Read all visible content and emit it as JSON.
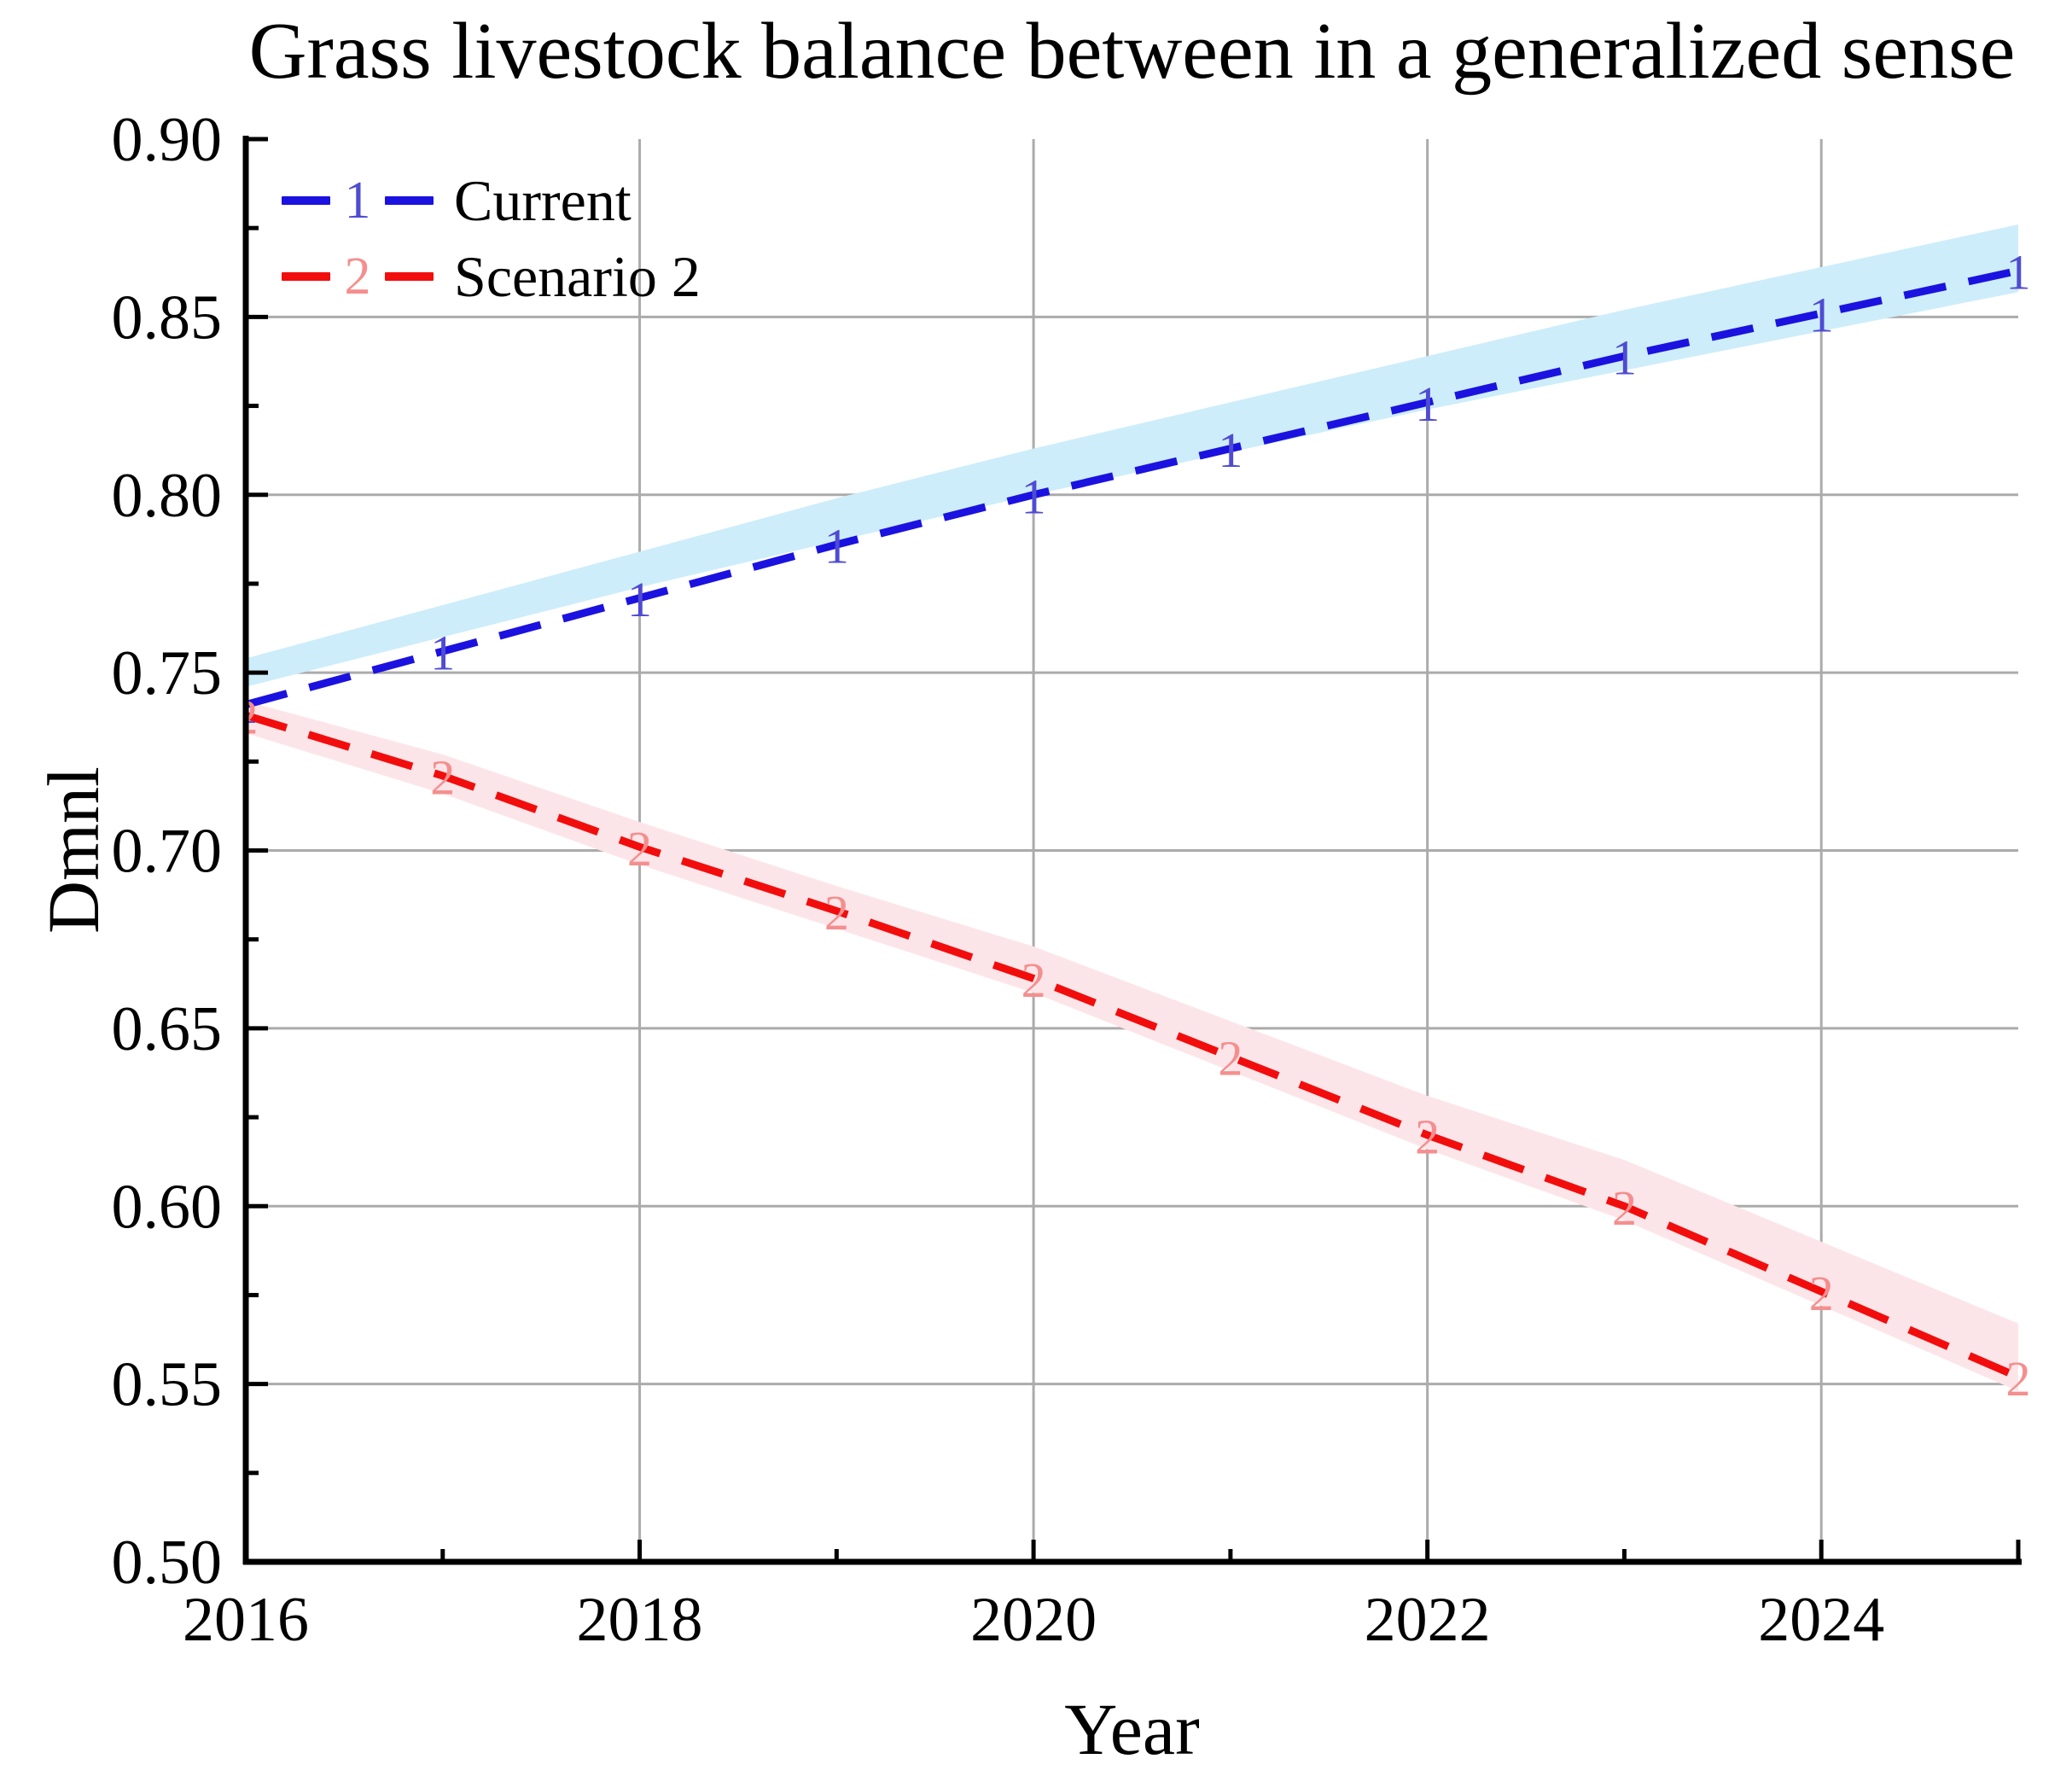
{
  "title": "Grass livestock balance between in a generalized sense",
  "axis_titles": {
    "x": "Year",
    "y": "Dmnl"
  },
  "legend": {
    "position": "top-left",
    "items": [
      {
        "key": "1",
        "label": "Current"
      },
      {
        "key": "2",
        "label": "Scenario 2"
      }
    ]
  },
  "chart_data": {
    "type": "line",
    "title": "Grass livestock balance between in a generalized sense",
    "xlabel": "Year",
    "ylabel": "Dmnl",
    "xlim": [
      2016,
      2025
    ],
    "ylim": [
      0.5,
      0.9
    ],
    "grid": true,
    "grid_color": "#ababab",
    "axis_color": "#000000",
    "legend_position": "top-left",
    "x": [
      2016,
      2017,
      2018,
      2019,
      2020,
      2021,
      2022,
      2023,
      2024,
      2025
    ],
    "series": [
      {
        "name": "Current",
        "marker": "1",
        "color": "#1b12e0",
        "marker_color": "#4f4bd2",
        "band_color": "#cdedfa",
        "values": [
          0.741,
          0.756,
          0.771,
          0.786,
          0.8,
          0.813,
          0.826,
          0.839,
          0.851,
          0.863
        ],
        "band_upper": [
          0.754,
          0.769,
          0.784,
          0.799,
          0.813,
          0.826,
          0.839,
          0.852,
          0.864,
          0.876
        ],
        "band_lower": [
          0.746,
          0.76,
          0.774,
          0.787,
          0.8,
          0.812,
          0.824,
          0.835,
          0.846,
          0.857
        ]
      },
      {
        "name": "Scenario 2",
        "marker": "2",
        "color": "#f20d0d",
        "marker_color": "#f58e8e",
        "band_color": "#fce5e9",
        "values": [
          0.738,
          0.721,
          0.701,
          0.683,
          0.664,
          0.642,
          0.62,
          0.6,
          0.576,
          0.552
        ],
        "band_upper": [
          0.742,
          0.727,
          0.708,
          0.69,
          0.673,
          0.652,
          0.631,
          0.613,
          0.59,
          0.567
        ],
        "band_lower": [
          0.733,
          0.716,
          0.696,
          0.678,
          0.66,
          0.638,
          0.616,
          0.596,
          0.572,
          0.548
        ]
      }
    ],
    "x_grid": [
      2018,
      2020,
      2022,
      2024
    ],
    "y_grid": [
      0.55,
      0.6,
      0.65,
      0.7,
      0.75,
      0.8,
      0.85
    ],
    "x_major_ticks": [
      2018,
      2020,
      2022,
      2024,
      2025
    ],
    "x_minor_ticks": [
      2017,
      2019,
      2021,
      2023
    ],
    "y_major_ticks": [
      0.55,
      0.6,
      0.65,
      0.7,
      0.75,
      0.8,
      0.85,
      0.9
    ],
    "y_minor_ticks": [
      0.525,
      0.575,
      0.625,
      0.675,
      0.725,
      0.775,
      0.825,
      0.875
    ],
    "x_label_positions": [
      2016,
      2018,
      2020,
      2022,
      2024
    ],
    "x_tick_labels": [
      "2016",
      "2018",
      "2020",
      "2022",
      "2024"
    ],
    "y_label_positions": [
      0.5,
      0.55,
      0.6,
      0.65,
      0.7,
      0.75,
      0.8,
      0.85,
      0.9
    ],
    "y_tick_labels": [
      "0.50",
      "0.55",
      "0.60",
      "0.65",
      "0.70",
      "0.75",
      "0.80",
      "0.85",
      "0.90"
    ]
  }
}
